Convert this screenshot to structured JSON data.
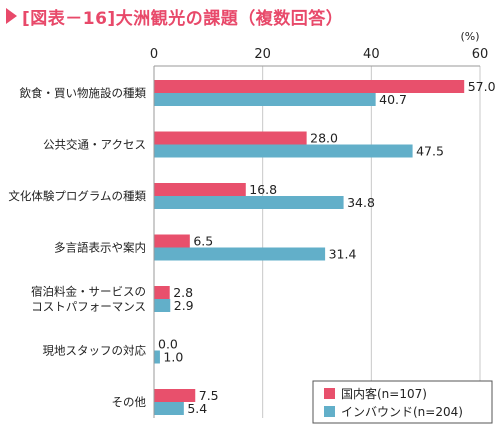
{
  "title": "[図表－16]大洲観光の課題（複数回答）",
  "unit": "(%)",
  "colors": {
    "domestic": "#e8506c",
    "inbound": "#62afc9",
    "title": "#e8496a"
  },
  "chart_data": {
    "type": "bar",
    "orientation": "horizontal",
    "xlim": [
      0,
      60
    ],
    "ticks": [
      0,
      20,
      40,
      60
    ],
    "grid": true,
    "legend_position": "bottom-right",
    "categories": [
      [
        "飲食・買い物施設の種類"
      ],
      [
        "公共交通・アクセス"
      ],
      [
        "文化体験プログラムの種類"
      ],
      [
        "多言語表示や案内"
      ],
      [
        "宿泊料金・サービスの",
        "コストパフォーマンス"
      ],
      [
        "現地スタッフの対応"
      ],
      [
        "その他"
      ]
    ],
    "series": [
      {
        "name": "国内客(n=107)",
        "values": [
          57.0,
          28.0,
          16.8,
          6.5,
          2.8,
          0.0,
          7.5
        ]
      },
      {
        "name": "インバウンド(n=204)",
        "values": [
          40.7,
          47.5,
          34.8,
          31.4,
          2.9,
          1.0,
          5.4
        ]
      }
    ]
  }
}
